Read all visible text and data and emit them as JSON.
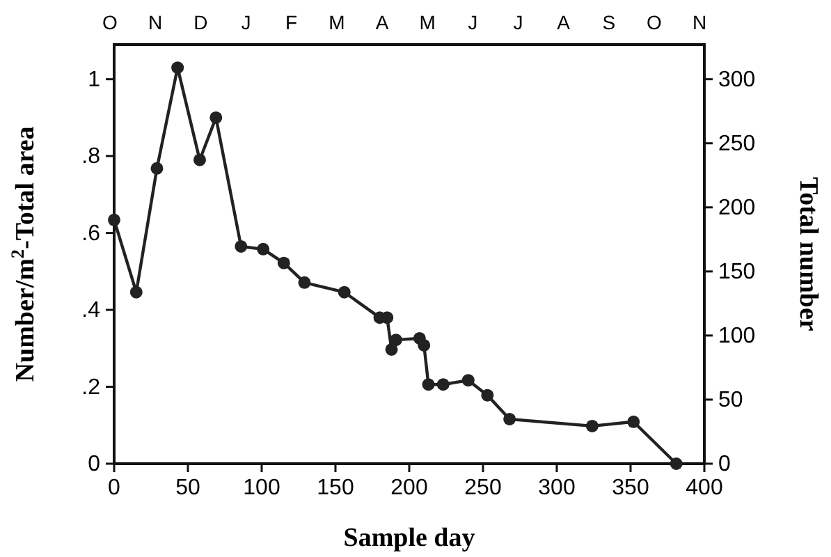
{
  "chart_data": {
    "type": "line",
    "xlabel": "Sample day",
    "ylabel": "Number/m$^{2}$-Total area",
    "y2label": "Total number",
    "x": [
      0,
      15,
      29,
      43,
      58,
      69,
      86,
      101,
      115,
      129,
      156,
      180,
      185,
      188,
      191,
      207,
      210,
      213,
      223,
      240,
      253,
      268,
      324,
      352,
      381
    ],
    "series": [
      {
        "color": "#222222",
        "values": [
          0.634,
          0.446,
          0.768,
          1.03,
          0.79,
          0.9,
          0.565,
          0.558,
          0.522,
          0.471,
          0.446,
          0.38,
          0.38,
          0.297,
          0.322,
          0.326,
          0.308,
          0.206,
          0.206,
          0.217,
          0.178,
          0.116,
          0.098,
          0.109,
          0
        ]
      }
    ],
    "xlim": [
      0,
      400
    ],
    "xticks": [
      0,
      50,
      100,
      150,
      200,
      250,
      300,
      350,
      400
    ],
    "ylim": [
      0,
      1.09
    ],
    "yticks": [
      0,
      {
        "value": 0.2,
        "label": ".2"
      },
      {
        "value": 0.4,
        "label": ".4"
      },
      {
        "value": 0.6,
        "label": ".6"
      },
      {
        "value": 0.8,
        "label": ".8"
      },
      1
    ],
    "y2lim": [
      0,
      327
    ],
    "y2ticks": [
      0,
      50,
      100,
      150,
      200,
      250,
      300
    ],
    "annotations": [
      "O",
      "N",
      "D",
      "J",
      "F",
      "M",
      "A",
      "M",
      "J",
      "J",
      "A",
      "S",
      "O",
      "N"
    ],
    "grid": false,
    "marker": "circle",
    "line_style": "solid"
  }
}
